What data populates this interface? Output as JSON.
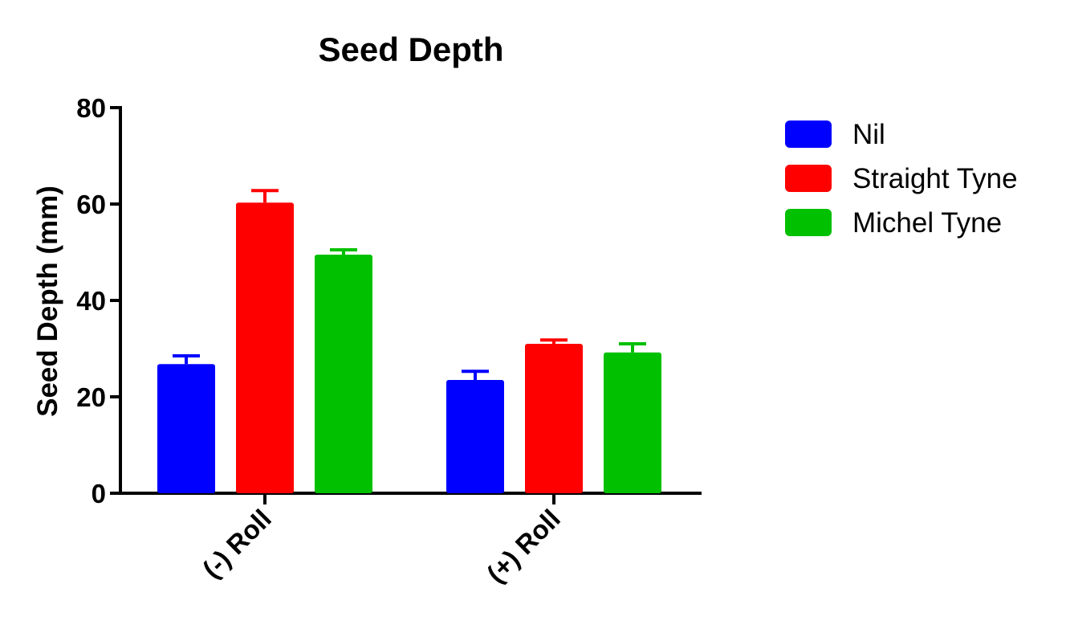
{
  "chart_data": {
    "type": "bar",
    "title": "Seed Depth",
    "xlabel": "",
    "ylabel": "Seed Depth (mm)",
    "ylim": [
      0,
      80
    ],
    "yticks": [
      0,
      20,
      40,
      60,
      80
    ],
    "categories": [
      "(-) Roll",
      "(+) Roll"
    ],
    "series": [
      {
        "name": "Nil",
        "color": "#0000ff",
        "values": [
          26.8,
          23.5
        ],
        "errors": [
          1.7,
          1.8
        ]
      },
      {
        "name": "Straight Tyne",
        "color": "#ff0000",
        "values": [
          60.3,
          31.0
        ],
        "errors": [
          2.5,
          0.8
        ]
      },
      {
        "name": "Michel Tyne",
        "color": "#00c000",
        "values": [
          49.5,
          29.2
        ],
        "errors": [
          1.0,
          1.8
        ]
      }
    ],
    "legend_position": "top-right",
    "grid": false
  }
}
